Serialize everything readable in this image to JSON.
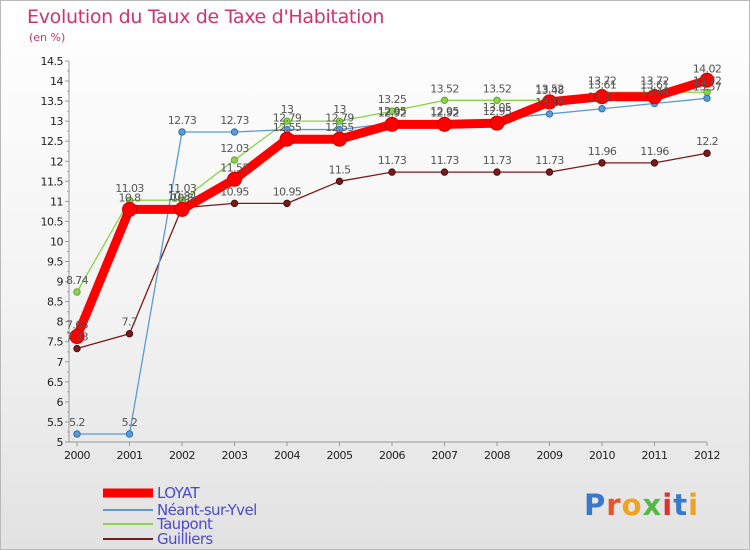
{
  "title": "Evolution du Taux de Taxe d'Habitation",
  "unit_label": "(en %)",
  "brand": "Proxiti",
  "chart_data": {
    "type": "line",
    "title": "Evolution du Taux de Taxe d'Habitation",
    "ylabel": "(en %)",
    "xlabel": "",
    "x": [
      "2000",
      "2001",
      "2002",
      "2003",
      "2004",
      "2005",
      "2006",
      "2007",
      "2008",
      "2009",
      "2010",
      "2011",
      "2012"
    ],
    "ylim": [
      5,
      14.5
    ],
    "yticks": [
      "5",
      "5.5",
      "6",
      "6.5",
      "7",
      "7.5",
      "8",
      "8.5",
      "9",
      "9.5",
      "10",
      "10.5",
      "11",
      "11.5",
      "12",
      "12.5",
      "13",
      "13.5",
      "14",
      "14.5"
    ],
    "grid": false,
    "legend_position": "bottom-left",
    "series": [
      {
        "name": "LOYAT",
        "color": "#ff0000",
        "values": [
          7.63,
          10.8,
          10.8,
          11.55,
          12.55,
          12.55,
          12.92,
          12.92,
          12.95,
          13.48,
          13.61,
          13.61,
          14.02
        ],
        "labels": [
          "7.63",
          "10.8",
          "10.8",
          "11.55",
          "12.55",
          "12.55",
          "12.92",
          "12.92",
          "12.95",
          "13.48",
          "13.61",
          "13.61",
          "14.02"
        ]
      },
      {
        "name": "Néant-sur-Yvel",
        "color": "#5b9bd5",
        "values": [
          5.2,
          5.2,
          12.73,
          12.73,
          12.79,
          12.79,
          12.95,
          12.95,
          13.05,
          13.18,
          13.31,
          13.44,
          13.57
        ],
        "labels": [
          "5.2",
          "5.2",
          "12.73",
          "12.73",
          "12.79",
          "12.79",
          "12.95",
          "12.95",
          "13.05",
          "13.18",
          "13.31",
          "13.44",
          "13.57"
        ]
      },
      {
        "name": "Taupont",
        "color": "#8cd24a",
        "values": [
          8.74,
          11.03,
          11.03,
          12.03,
          13,
          13,
          13.25,
          13.52,
          13.52,
          13.52,
          13.72,
          13.72,
          13.72
        ],
        "labels": [
          "8.74",
          "11.03",
          "11.03",
          "12.03",
          "13",
          "13",
          "13.25",
          "13.52",
          "13.52",
          "13.52",
          "13.72",
          "13.72",
          "13.72"
        ]
      },
      {
        "name": "Guilliers",
        "color": "#7a1a1a",
        "values": [
          7.33,
          7.7,
          10.84,
          10.95,
          10.95,
          11.5,
          11.73,
          11.73,
          11.73,
          11.73,
          11.96,
          11.96,
          12.2
        ],
        "labels": [
          "7.33",
          "7.7",
          "10.84",
          "10.95",
          "10.95",
          "11.5",
          "11.73",
          "11.73",
          "11.73",
          "11.73",
          "11.96",
          "11.96",
          "12.2"
        ]
      }
    ]
  },
  "legend": {
    "items": [
      {
        "label": "LOYAT",
        "color": "#ff0000"
      },
      {
        "label": "Néant-sur-Yvel",
        "color": "#5b9bd5"
      },
      {
        "label": "Taupont",
        "color": "#8cd24a"
      },
      {
        "label": "Guilliers",
        "color": "#7a1a1a"
      }
    ]
  }
}
